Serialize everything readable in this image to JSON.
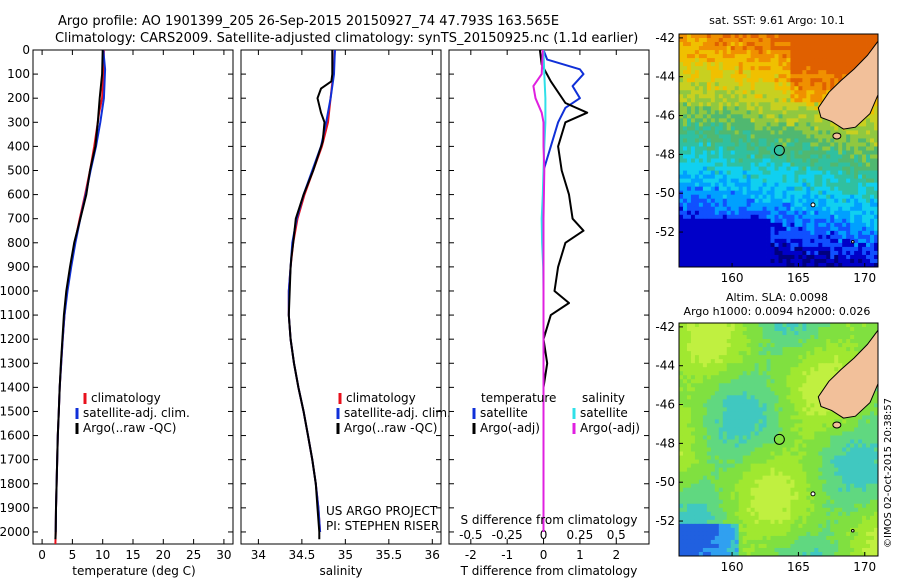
{
  "header": {
    "line1": "Argo profile: AO 1901399_205 26-Sep-2015 20150927_74 47.793S 163.565E",
    "line2": "Climatology: CARS2009. Satellite-adjusted climatology: synTS_20150925.nc (1.1d earlier)"
  },
  "colors": {
    "red": "#e8101c",
    "blue": "#1030d8",
    "black": "#000000",
    "cyan": "#30e0e8",
    "magenta": "#e020e0",
    "land": "#f2c09a"
  },
  "chart_data": [
    {
      "type": "line",
      "xlabel": "temperature (deg C)",
      "ylabel": "",
      "xlim": [
        -1.5,
        31.5
      ],
      "ylim": [
        2050,
        0
      ],
      "xticks": [
        0,
        5,
        10,
        15,
        20,
        25,
        30
      ],
      "yticks": [
        0,
        100,
        200,
        300,
        400,
        500,
        600,
        700,
        800,
        900,
        1000,
        1100,
        1200,
        1300,
        1400,
        1500,
        1600,
        1700,
        1800,
        1900,
        2000
      ],
      "legend": {
        "placement": "lower-center",
        "entries": [
          "climatology",
          "satellite-adj. clim.",
          "Argo(..raw -QC)"
        ]
      },
      "series": [
        {
          "name": "climatology",
          "color": "red",
          "points": [
            [
              10.2,
              0
            ],
            [
              10.1,
              100
            ],
            [
              9.9,
              200
            ],
            [
              9.4,
              260
            ],
            [
              9.2,
              300
            ],
            [
              8.6,
              400
            ],
            [
              7.9,
              500
            ],
            [
              7.1,
              600
            ],
            [
              6.2,
              700
            ],
            [
              5.4,
              800
            ],
            [
              4.7,
              900
            ],
            [
              4.1,
              1000
            ],
            [
              3.7,
              1100
            ],
            [
              3.4,
              1200
            ],
            [
              3.15,
              1300
            ],
            [
              2.9,
              1400
            ],
            [
              2.75,
              1500
            ],
            [
              2.6,
              1600
            ],
            [
              2.5,
              1700
            ],
            [
              2.4,
              1800
            ],
            [
              2.3,
              1900
            ],
            [
              2.25,
              2000
            ],
            [
              2.2,
              2050
            ]
          ]
        },
        {
          "name": "satellite-adj. clim.",
          "color": "blue",
          "points": [
            [
              10.1,
              0
            ],
            [
              10.4,
              80
            ],
            [
              10.2,
              200
            ],
            [
              9.6,
              300
            ],
            [
              8.9,
              400
            ],
            [
              8.0,
              500
            ],
            [
              7.2,
              600
            ],
            [
              6.3,
              700
            ],
            [
              5.5,
              800
            ],
            [
              4.8,
              900
            ],
            [
              4.2,
              1000
            ],
            [
              3.7,
              1100
            ],
            [
              3.4,
              1200
            ],
            [
              3.15,
              1300
            ],
            [
              2.9,
              1400
            ],
            [
              2.75,
              1500
            ],
            [
              2.6,
              1600
            ],
            [
              2.5,
              1700
            ],
            [
              2.4,
              1800
            ],
            [
              2.3,
              1900
            ],
            [
              2.25,
              2000
            ]
          ]
        },
        {
          "name": "Argo(..raw -QC)",
          "color": "black",
          "points": [
            [
              10.0,
              0
            ],
            [
              9.9,
              100
            ],
            [
              9.5,
              200
            ],
            [
              9.2,
              300
            ],
            [
              8.8,
              400
            ],
            [
              7.9,
              500
            ],
            [
              7.3,
              600
            ],
            [
              6.3,
              700
            ],
            [
              5.3,
              800
            ],
            [
              4.6,
              900
            ],
            [
              4.0,
              1000
            ],
            [
              3.6,
              1100
            ],
            [
              3.35,
              1200
            ],
            [
              3.1,
              1300
            ],
            [
              2.9,
              1400
            ],
            [
              2.75,
              1500
            ],
            [
              2.6,
              1600
            ],
            [
              2.5,
              1700
            ],
            [
              2.4,
              1800
            ],
            [
              2.3,
              1900
            ],
            [
              2.25,
              2000
            ],
            [
              2.2,
              2030
            ]
          ]
        }
      ]
    },
    {
      "type": "line",
      "xlabel": "salinity",
      "ylabel": "",
      "xlim": [
        33.8,
        36.1
      ],
      "ylim": [
        2050,
        0
      ],
      "xticks": [
        34,
        34.5,
        35,
        35.5,
        36
      ],
      "xticklabels": [
        "34",
        "34.5",
        "35",
        "35.5",
        "36"
      ],
      "legend": {
        "placement": "lower-center",
        "entries": [
          "climatology",
          "satellite-adj. clim.",
          "Argo(..raw -QC)"
        ]
      },
      "annotations": [
        "US ARGO PROJECT",
        "PI: STEPHEN RISER"
      ],
      "series": [
        {
          "name": "climatology",
          "color": "red",
          "points": [
            [
              34.88,
              0
            ],
            [
              34.86,
              100
            ],
            [
              34.83,
              200
            ],
            [
              34.8,
              300
            ],
            [
              34.73,
              400
            ],
            [
              34.63,
              500
            ],
            [
              34.53,
              600
            ],
            [
              34.45,
              700
            ],
            [
              34.4,
              800
            ],
            [
              34.37,
              900
            ],
            [
              34.35,
              1000
            ],
            [
              34.35,
              1100
            ],
            [
              34.37,
              1200
            ],
            [
              34.41,
              1300
            ],
            [
              34.46,
              1400
            ],
            [
              34.52,
              1500
            ],
            [
              34.57,
              1600
            ],
            [
              34.62,
              1700
            ],
            [
              34.66,
              1800
            ],
            [
              34.69,
              1900
            ],
            [
              34.71,
              2000
            ]
          ]
        },
        {
          "name": "satellite-adj. clim.",
          "color": "blue",
          "points": [
            [
              34.88,
              0
            ],
            [
              34.87,
              100
            ],
            [
              34.83,
              200
            ],
            [
              34.78,
              300
            ],
            [
              34.72,
              400
            ],
            [
              34.62,
              500
            ],
            [
              34.52,
              600
            ],
            [
              34.44,
              700
            ],
            [
              34.39,
              800
            ],
            [
              34.37,
              900
            ],
            [
              34.35,
              1000
            ],
            [
              34.35,
              1100
            ],
            [
              34.37,
              1200
            ],
            [
              34.41,
              1300
            ],
            [
              34.46,
              1400
            ],
            [
              34.52,
              1500
            ],
            [
              34.57,
              1600
            ],
            [
              34.62,
              1700
            ],
            [
              34.66,
              1800
            ],
            [
              34.69,
              1900
            ],
            [
              34.71,
              2000
            ]
          ]
        },
        {
          "name": "Argo(..raw -QC)",
          "color": "black",
          "points": [
            [
              34.85,
              0
            ],
            [
              34.85,
              100
            ],
            [
              34.84,
              130
            ],
            [
              34.72,
              160
            ],
            [
              34.68,
              200
            ],
            [
              34.72,
              260
            ],
            [
              34.76,
              300
            ],
            [
              34.74,
              380
            ],
            [
              34.63,
              500
            ],
            [
              34.52,
              600
            ],
            [
              34.43,
              700
            ],
            [
              34.4,
              800
            ],
            [
              34.38,
              860
            ],
            [
              34.37,
              900
            ],
            [
              34.36,
              1000
            ],
            [
              34.35,
              1100
            ],
            [
              34.37,
              1200
            ],
            [
              34.41,
              1300
            ],
            [
              34.46,
              1400
            ],
            [
              34.52,
              1500
            ],
            [
              34.57,
              1600
            ],
            [
              34.62,
              1700
            ],
            [
              34.66,
              1800
            ],
            [
              34.68,
              1900
            ],
            [
              34.7,
              2000
            ],
            [
              34.7,
              2030
            ]
          ]
        }
      ]
    },
    {
      "type": "line",
      "xlabel": "T difference from climatology",
      "xlabel_top": "S difference from climatology",
      "xlim": [
        -2.6,
        2.9
      ],
      "ylim": [
        2050,
        0
      ],
      "xticks": [
        -2,
        -1,
        0,
        1,
        2
      ],
      "sticks": [
        -0.5,
        -0.25,
        0,
        0.25,
        0.5
      ],
      "sticklabels": [
        "-0.5",
        "-0.25",
        "0",
        "0.25",
        "0.5"
      ],
      "legend": {
        "placement": "lower-center",
        "groups": [
          {
            "title": "temperature",
            "entries": [
              "satellite",
              "Argo(-adj)"
            ]
          },
          {
            "title": "salinity",
            "entries": [
              "satellite",
              "Argo(-adj)"
            ]
          }
        ]
      },
      "series": [
        {
          "name": "temperature satellite",
          "color": "blue",
          "points": [
            [
              0.0,
              0
            ],
            [
              0.1,
              40
            ],
            [
              1.0,
              80
            ],
            [
              1.1,
              100
            ],
            [
              0.8,
              150
            ],
            [
              1.0,
              200
            ],
            [
              0.6,
              240
            ],
            [
              0.4,
              300
            ],
            [
              0.2,
              400
            ],
            [
              0.0,
              500
            ],
            [
              0.0,
              600
            ],
            [
              0.0,
              700
            ],
            [
              0.0,
              800
            ],
            [
              0.0,
              900
            ],
            [
              0.0,
              1000
            ],
            [
              0.0,
              1100
            ],
            [
              0.0,
              1200
            ],
            [
              0.0,
              1300
            ],
            [
              0.0,
              1400
            ],
            [
              0.0,
              1500
            ],
            [
              0.0,
              1700
            ],
            [
              0.0,
              2000
            ]
          ]
        },
        {
          "name": "temperature Argo(-adj)",
          "color": "black",
          "points": [
            [
              -0.1,
              0
            ],
            [
              -0.05,
              60
            ],
            [
              0.2,
              130
            ],
            [
              0.6,
              220
            ],
            [
              1.2,
              260
            ],
            [
              0.6,
              300
            ],
            [
              0.4,
              400
            ],
            [
              0.5,
              500
            ],
            [
              0.7,
              600
            ],
            [
              0.8,
              700
            ],
            [
              1.1,
              750
            ],
            [
              0.6,
              800
            ],
            [
              0.4,
              900
            ],
            [
              0.3,
              1000
            ],
            [
              0.7,
              1050
            ],
            [
              0.2,
              1100
            ],
            [
              0.0,
              1200
            ],
            [
              0.1,
              1300
            ],
            [
              0.0,
              1400
            ],
            [
              0.0,
              1500
            ],
            [
              0.0,
              1700
            ],
            [
              0.0,
              2000
            ]
          ]
        },
        {
          "name": "salinity satellite",
          "color": "cyan",
          "points": [
            [
              0.0,
              0
            ],
            [
              0.02,
              100
            ],
            [
              0.05,
              200
            ],
            [
              0.05,
              300
            ],
            [
              0.02,
              400
            ],
            [
              0.0,
              500
            ],
            [
              -0.02,
              600
            ],
            [
              -0.05,
              700
            ],
            [
              -0.04,
              800
            ],
            [
              -0.01,
              900
            ],
            [
              0.0,
              1000
            ],
            [
              0.0,
              1200
            ],
            [
              0.0,
              1500
            ],
            [
              0.0,
              2000
            ]
          ]
        },
        {
          "name": "salinity Argo(-adj)",
          "color": "magenta",
          "points": [
            [
              -0.02,
              0
            ],
            [
              -0.05,
              100
            ],
            [
              -0.28,
              150
            ],
            [
              -0.22,
              200
            ],
            [
              -0.05,
              260
            ],
            [
              0.0,
              300
            ],
            [
              0.0,
              400
            ],
            [
              0.02,
              500
            ],
            [
              0.0,
              700
            ],
            [
              0.0,
              1000
            ],
            [
              0.0,
              1500
            ],
            [
              0.0,
              2000
            ]
          ]
        }
      ]
    },
    {
      "type": "heatmap",
      "title": "sat. SST: 9.61  Argo: 10.1",
      "xlim": [
        156,
        171
      ],
      "ylim": [
        -53.8,
        -41.8
      ],
      "xticks": [
        160,
        165,
        170
      ],
      "yticks": [
        -42,
        -44,
        -46,
        -48,
        -50,
        -52
      ],
      "argo_position": {
        "lon": 163.565,
        "lat": -47.793
      }
    },
    {
      "type": "heatmap",
      "title": "Altim. SLA: 0.0098",
      "subtitle": "Argo h1000: 0.0094  h2000: 0.026",
      "xlim": [
        156,
        171
      ],
      "ylim": [
        -53.8,
        -41.8
      ],
      "xticks": [
        160,
        165,
        170
      ],
      "yticks": [
        -42,
        -44,
        -46,
        -48,
        -50,
        -52
      ],
      "argo_position": {
        "lon": 163.565,
        "lat": -47.793
      }
    }
  ],
  "watermark": "©IMOS 02-Oct-2015 20:38:57"
}
